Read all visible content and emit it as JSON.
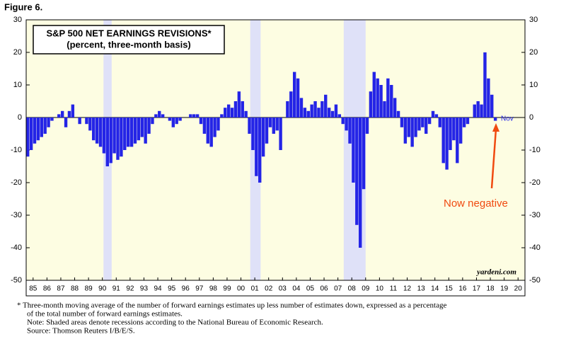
{
  "figure_label": "Figure 6.",
  "chart_data": {
    "type": "bar",
    "title": "S&P 500 NET EARNINGS REVISIONS*",
    "subtitle": "(percent, three-month basis)",
    "x": [
      1985,
      1985.25,
      1985.5,
      1985.75,
      1986,
      1986.25,
      1986.5,
      1986.75,
      1987,
      1987.25,
      1987.5,
      1987.75,
      1988,
      1988.25,
      1988.5,
      1988.75,
      1989,
      1989.25,
      1989.5,
      1989.75,
      1990,
      1990.25,
      1990.5,
      1990.75,
      1991,
      1991.25,
      1991.5,
      1991.75,
      1992,
      1992.25,
      1992.5,
      1992.75,
      1993,
      1993.25,
      1993.5,
      1993.75,
      1994,
      1994.25,
      1994.5,
      1994.75,
      1995,
      1995.25,
      1995.5,
      1995.75,
      1996,
      1996.25,
      1996.5,
      1996.75,
      1997,
      1997.25,
      1997.5,
      1997.75,
      1998,
      1998.25,
      1998.5,
      1998.75,
      1999,
      1999.25,
      1999.5,
      1999.75,
      2000,
      2000.25,
      2000.5,
      2000.75,
      2001,
      2001.25,
      2001.5,
      2001.75,
      2002,
      2002.25,
      2002.5,
      2002.75,
      2003,
      2003.25,
      2003.5,
      2003.75,
      2004,
      2004.25,
      2004.5,
      2004.75,
      2005,
      2005.25,
      2005.5,
      2005.75,
      2006,
      2006.25,
      2006.5,
      2006.75,
      2007,
      2007.25,
      2007.5,
      2007.75,
      2008,
      2008.25,
      2008.5,
      2008.75,
      2009,
      2009.25,
      2009.5,
      2009.75,
      2010,
      2010.25,
      2010.5,
      2010.75,
      2011,
      2011.25,
      2011.5,
      2011.75,
      2012,
      2012.25,
      2012.5,
      2012.75,
      2013,
      2013.25,
      2013.5,
      2013.75,
      2014,
      2014.25,
      2014.5,
      2014.75,
      2015,
      2015.25,
      2015.5,
      2015.75,
      2016,
      2016.25,
      2016.5,
      2016.75,
      2017,
      2017.25,
      2017.5,
      2017.75,
      2018,
      2018.25,
      2018.5,
      2018.75
    ],
    "values": [
      -12,
      -10,
      -8,
      -7,
      -6,
      -5,
      -3,
      -1,
      0,
      1,
      2,
      -3,
      2,
      4,
      0,
      -2,
      0,
      -2,
      -4,
      -7,
      -8,
      -9,
      -11,
      -15,
      -14,
      -11,
      -13,
      -12,
      -10,
      -9,
      -9,
      -8,
      -7,
      -6,
      -8,
      -5,
      -2,
      1,
      2,
      1,
      0,
      -1,
      -3,
      -2,
      -1,
      0,
      0,
      1,
      1,
      1,
      -2,
      -5,
      -8,
      -9,
      -6,
      -4,
      1,
      3,
      4,
      3,
      5,
      8,
      5,
      2,
      -5,
      -10,
      -18,
      -20,
      -12,
      -8,
      -3,
      -5,
      -4,
      -10,
      0,
      5,
      8,
      14,
      12,
      6,
      3,
      2,
      4,
      5,
      3,
      5,
      7,
      3,
      2,
      4,
      1,
      -2,
      -4,
      -8,
      -20,
      -33,
      -40,
      -22,
      -5,
      8,
      14,
      12,
      10,
      5,
      12,
      10,
      6,
      2,
      -3,
      -8,
      -6,
      -9,
      -6,
      -4,
      -3,
      -5,
      -2,
      2,
      1,
      -3,
      -14,
      -16,
      -10,
      -7,
      -14,
      -8,
      -3,
      -2,
      0,
      4,
      5,
      4,
      20,
      12,
      7,
      -1
    ],
    "color": "#2424e6",
    "recessions": [
      [
        1990.58,
        1991.17
      ],
      [
        2001.17,
        2001.92
      ],
      [
        2007.92,
        2009.5
      ]
    ],
    "xlim": [
      1985,
      2021
    ],
    "xticks": [
      {
        "value": 1985.5,
        "label": "85"
      },
      {
        "value": 1986.5,
        "label": "86"
      },
      {
        "value": 1987.5,
        "label": "87"
      },
      {
        "value": 1988.5,
        "label": "88"
      },
      {
        "value": 1989.5,
        "label": "89"
      },
      {
        "value": 1990.5,
        "label": "90"
      },
      {
        "value": 1991.5,
        "label": "91"
      },
      {
        "value": 1992.5,
        "label": "92"
      },
      {
        "value": 1993.5,
        "label": "93"
      },
      {
        "value": 1994.5,
        "label": "94"
      },
      {
        "value": 1995.5,
        "label": "95"
      },
      {
        "value": 1996.5,
        "label": "96"
      },
      {
        "value": 1997.5,
        "label": "97"
      },
      {
        "value": 1998.5,
        "label": "98"
      },
      {
        "value": 1999.5,
        "label": "99"
      },
      {
        "value": 2000.5,
        "label": "00"
      },
      {
        "value": 2001.5,
        "label": "01"
      },
      {
        "value": 2002.5,
        "label": "02"
      },
      {
        "value": 2003.5,
        "label": "03"
      },
      {
        "value": 2004.5,
        "label": "04"
      },
      {
        "value": 2005.5,
        "label": "05"
      },
      {
        "value": 2006.5,
        "label": "06"
      },
      {
        "value": 2007.5,
        "label": "07"
      },
      {
        "value": 2008.5,
        "label": "08"
      },
      {
        "value": 2009.5,
        "label": "09"
      },
      {
        "value": 2010.5,
        "label": "10"
      },
      {
        "value": 2011.5,
        "label": "11"
      },
      {
        "value": 2012.5,
        "label": "12"
      },
      {
        "value": 2013.5,
        "label": "13"
      },
      {
        "value": 2014.5,
        "label": "14"
      },
      {
        "value": 2015.5,
        "label": "15"
      },
      {
        "value": 2016.5,
        "label": "16"
      },
      {
        "value": 2017.5,
        "label": "17"
      },
      {
        "value": 2018.5,
        "label": "18"
      },
      {
        "value": 2019.5,
        "label": "19"
      },
      {
        "value": 2020.5,
        "label": "20"
      }
    ],
    "ylim": [
      -50,
      30
    ],
    "yticks": [
      -50,
      -40,
      -30,
      -20,
      -10,
      0,
      10,
      20,
      30
    ],
    "annotations": {
      "now": "Now negative",
      "month": "Nov",
      "source_mark": "yardeni.com"
    }
  },
  "footnotes": [
    "*  Three-month moving average of the number of forward earnings estimates up less number of estimates down, expressed as a percentage",
    "of the total number of forward earnings estimates.",
    "Note: Shaded areas denote recessions according to the National Bureau of Economic Research.",
    "Source: Thomson Reuters I/B/E/S."
  ]
}
